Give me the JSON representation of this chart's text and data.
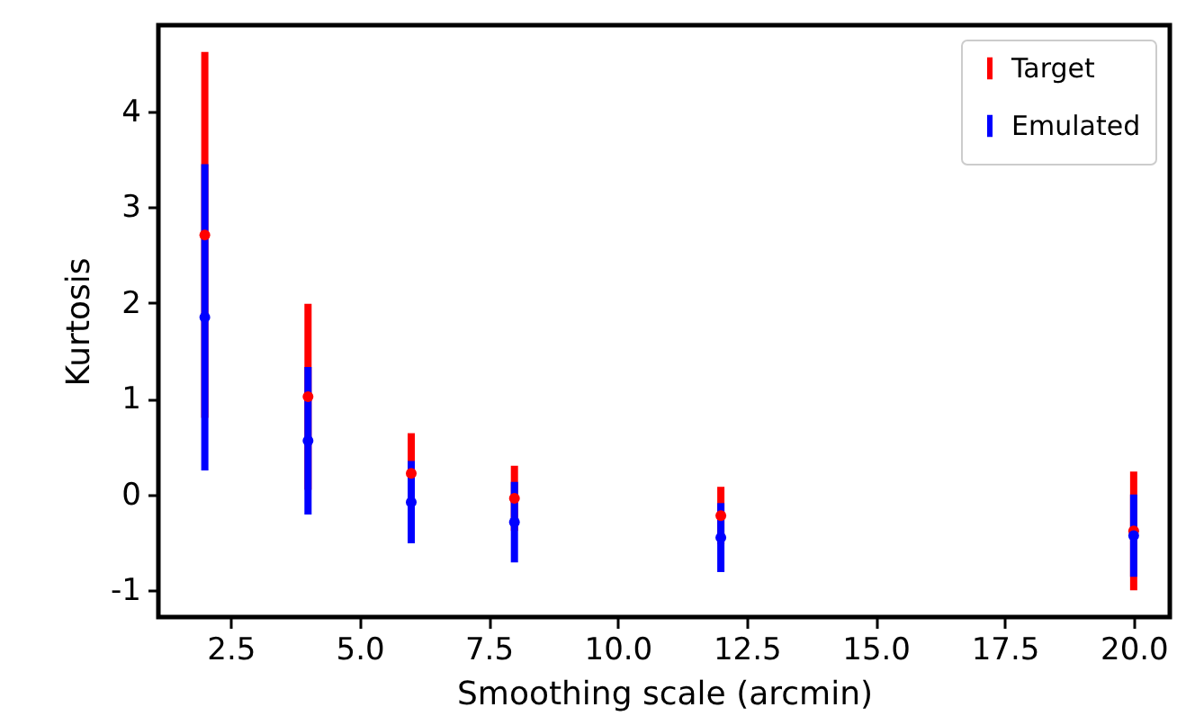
{
  "chart_data": {
    "type": "scatter",
    "xlabel": "Smoothing scale (arcmin)",
    "ylabel": "Kurtosis",
    "x": [
      2,
      4,
      6,
      8,
      12,
      20
    ],
    "series": [
      {
        "name": "Target",
        "color": "#ff0000",
        "values": [
          2.71,
          1.02,
          0.22,
          -0.04,
          -0.22,
          -0.38
        ],
        "errors": [
          1.91,
          0.97,
          0.42,
          0.34,
          0.3,
          0.62
        ]
      },
      {
        "name": "Emulated",
        "color": "#0000ff",
        "values": [
          1.85,
          0.56,
          -0.08,
          -0.29,
          -0.45,
          -0.43
        ],
        "errors": [
          1.6,
          0.77,
          0.43,
          0.42,
          0.36,
          0.43
        ]
      }
    ],
    "xlim": [
      1.1,
      20.7
    ],
    "ylim": [
      -1.28,
      4.9
    ],
    "xticks": [
      2.5,
      {
        "value": 5,
        "label": "5.0"
      },
      7.5,
      {
        "value": 10,
        "label": "10.0"
      },
      12.5,
      {
        "value": 15,
        "label": "15.0"
      },
      17.5,
      {
        "value": 20,
        "label": "20.0"
      }
    ],
    "yticks": [
      -1,
      0,
      1,
      2,
      3,
      4
    ],
    "grid": false,
    "legend": "top right",
    "marker": "circle"
  }
}
